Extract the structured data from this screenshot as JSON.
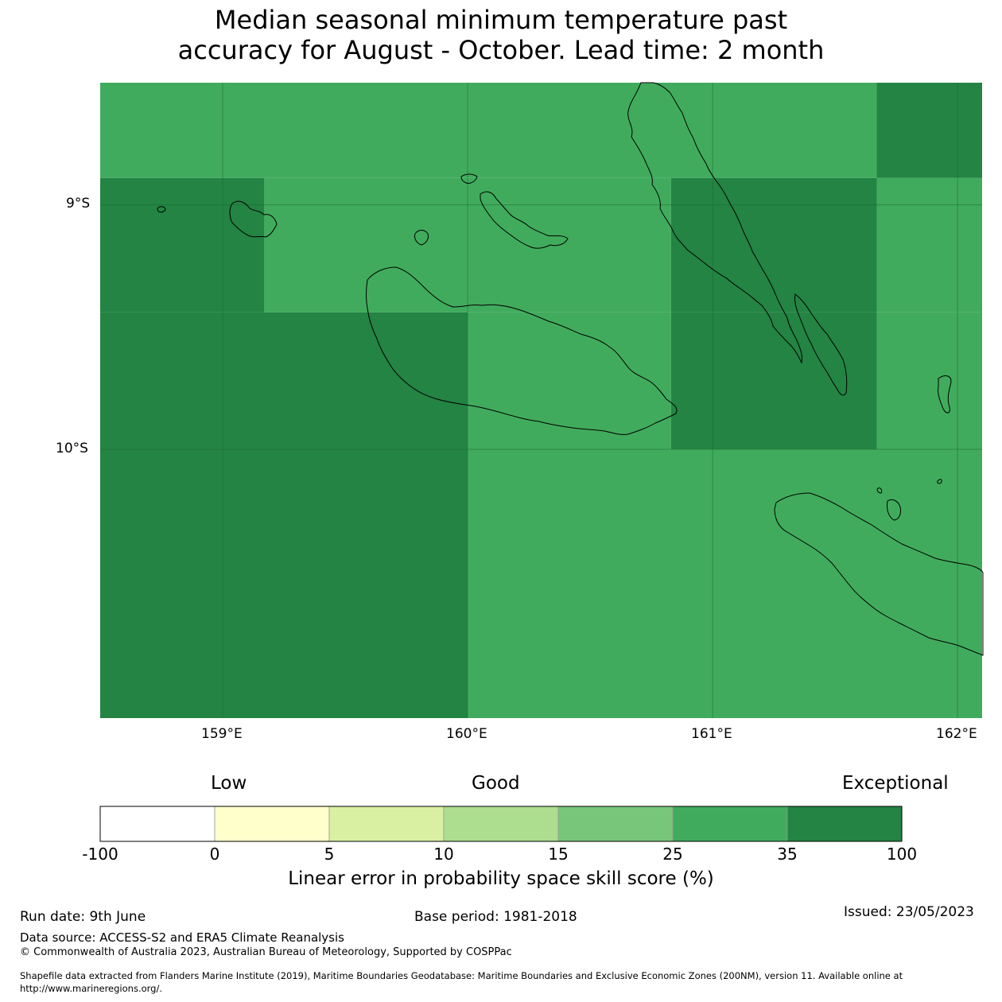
{
  "title": {
    "line1": "Median seasonal minimum temperature past",
    "line2": "accuracy for August - October. Lead time: 2 month"
  },
  "map": {
    "lat_ticks": [
      "9°S",
      "10°S"
    ],
    "lon_ticks": [
      "159°E",
      "160°E",
      "161°E",
      "162°E"
    ],
    "extent": {
      "lon_min": 158.5,
      "lon_max": 162.1,
      "lat_min": -11.1,
      "lat_max": -8.5
    },
    "colors": {
      "land_outline": "#000000",
      "grid": "#1a6b30"
    },
    "grid_cells": [
      {
        "lon": [
          158.5,
          161.67
        ],
        "lat": [
          -8.5,
          -8.89
        ],
        "color": "#41ab5d"
      },
      {
        "lon": [
          161.67,
          162.1
        ],
        "lat": [
          -8.5,
          -8.89
        ],
        "color": "#238443"
      },
      {
        "lon": [
          158.5,
          159.17
        ],
        "lat": [
          -8.89,
          -9.44
        ],
        "color": "#238443"
      },
      {
        "lon": [
          159.17,
          160.83
        ],
        "lat": [
          -8.89,
          -9.44
        ],
        "color": "#41ab5d"
      },
      {
        "lon": [
          160.83,
          161.67
        ],
        "lat": [
          -8.89,
          -9.44
        ],
        "color": "#238443"
      },
      {
        "lon": [
          161.67,
          162.1
        ],
        "lat": [
          -8.89,
          -9.44
        ],
        "color": "#41ab5d"
      },
      {
        "lon": [
          158.5,
          160.0
        ],
        "lat": [
          -9.44,
          -10.0
        ],
        "color": "#238443"
      },
      {
        "lon": [
          160.0,
          160.83
        ],
        "lat": [
          -9.44,
          -10.0
        ],
        "color": "#41ab5d"
      },
      {
        "lon": [
          160.83,
          161.67
        ],
        "lat": [
          -9.44,
          -10.0
        ],
        "color": "#238443"
      },
      {
        "lon": [
          161.67,
          162.1
        ],
        "lat": [
          -9.44,
          -10.0
        ],
        "color": "#41ab5d"
      },
      {
        "lon": [
          158.5,
          160.0
        ],
        "lat": [
          -10.0,
          -11.1
        ],
        "color": "#238443"
      },
      {
        "lon": [
          160.0,
          162.1
        ],
        "lat": [
          -10.0,
          -11.1
        ],
        "color": "#41ab5d"
      }
    ]
  },
  "legend": {
    "categories": [
      "Low",
      "Good",
      "Exceptional"
    ],
    "ticks": [
      "-100",
      "0",
      "5",
      "10",
      "15",
      "25",
      "35",
      "100"
    ],
    "colors": [
      "#ffffff",
      "#ffffcc",
      "#d9f0a3",
      "#addd8e",
      "#78c679",
      "#41ab5d",
      "#238443"
    ],
    "label": "Linear error in probability space skill score (%)"
  },
  "footer": {
    "run_date": "Run date: 9th June",
    "base_period": "Base period: 1981-2018",
    "issued": "Issued: 23/05/2023",
    "data_source": "Data source: ACCESS-S2 and ERA5 Climate Reanalysis",
    "copyright": "© Commonwealth of Australia 2023, Australian Bureau of Meteorology, Supported by COSPPac",
    "shapefile_line1": "Shapefile data extracted from Flanders Marine Institute (2019), Maritime Boundaries Geodatabase: Maritime Boundaries and Exclusive Economic Zones (200NM), version 11. Available online at",
    "shapefile_line2": "http://www.marineregions.org/."
  }
}
